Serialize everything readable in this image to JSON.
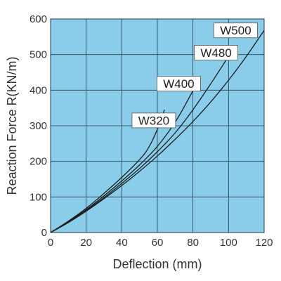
{
  "chart_data": {
    "type": "line",
    "title": "",
    "xlabel": "Deflection (mm)",
    "ylabel": "Reaction Force R(KN/m)",
    "xlim": [
      0,
      120
    ],
    "ylim": [
      0,
      600
    ],
    "x_ticks": [
      0,
      20,
      40,
      60,
      80,
      100,
      120
    ],
    "y_ticks": [
      0,
      100,
      200,
      300,
      400,
      500,
      600
    ],
    "grid": true,
    "legend": "none",
    "series": [
      {
        "name": "W320",
        "points": [
          [
            0,
            0
          ],
          [
            10,
            32
          ],
          [
            20,
            68
          ],
          [
            30,
            110
          ],
          [
            40,
            155
          ],
          [
            50,
            205
          ],
          [
            55,
            238
          ],
          [
            60,
            290
          ],
          [
            64,
            345
          ]
        ]
      },
      {
        "name": "W400",
        "points": [
          [
            0,
            0
          ],
          [
            10,
            30
          ],
          [
            20,
            64
          ],
          [
            30,
            103
          ],
          [
            40,
            145
          ],
          [
            50,
            190
          ],
          [
            60,
            242
          ],
          [
            70,
            310
          ],
          [
            78,
            380
          ],
          [
            84,
            437
          ]
        ]
      },
      {
        "name": "W480",
        "points": [
          [
            0,
            0
          ],
          [
            10,
            29
          ],
          [
            20,
            62
          ],
          [
            30,
            98
          ],
          [
            40,
            138
          ],
          [
            50,
            180
          ],
          [
            60,
            227
          ],
          [
            70,
            280
          ],
          [
            80,
            345
          ],
          [
            90,
            418
          ],
          [
            100,
            495
          ]
        ]
      },
      {
        "name": "W500",
        "points": [
          [
            0,
            0
          ],
          [
            10,
            28
          ],
          [
            20,
            60
          ],
          [
            30,
            95
          ],
          [
            40,
            132
          ],
          [
            50,
            172
          ],
          [
            60,
            215
          ],
          [
            70,
            262
          ],
          [
            80,
            312
          ],
          [
            90,
            367
          ],
          [
            100,
            428
          ],
          [
            110,
            495
          ],
          [
            120,
            568
          ]
        ]
      }
    ],
    "annotations": [
      {
        "text": "W320",
        "series": "W320",
        "anchor": [
          58,
          315
        ]
      },
      {
        "text": "W400",
        "series": "W400",
        "anchor": [
          72,
          418
        ]
      },
      {
        "text": "W480",
        "series": "W480",
        "anchor": [
          93,
          505
        ]
      },
      {
        "text": "W500",
        "series": "W500",
        "anchor": [
          104,
          568
        ]
      }
    ],
    "colors": {
      "plot_background": "#89CDEB",
      "grid": "#2a3b45",
      "line": "#1c1c1c",
      "label_box": "#ffffff",
      "text": "#333333"
    }
  }
}
